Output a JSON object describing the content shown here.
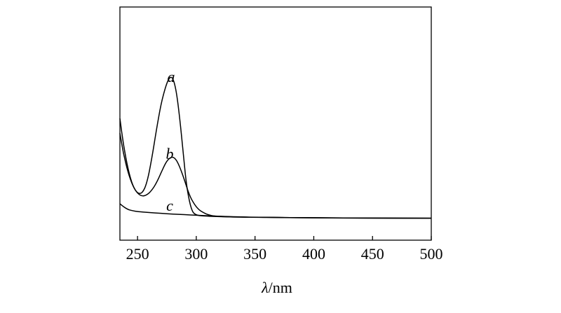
{
  "chart_data": {
    "type": "line",
    "title": "",
    "xlabel_italic": "λ",
    "xlabel_unit": "/nm",
    "ylabel": "",
    "xlim": [
      235,
      500
    ],
    "ylim": [
      0,
      1.0
    ],
    "xticks": [
      250,
      300,
      350,
      400,
      450,
      500
    ],
    "grid": false,
    "series": [
      {
        "name": "a",
        "x": [
          235,
          238,
          242,
          246,
          250,
          254,
          258,
          262,
          266,
          270,
          274,
          277,
          280,
          283,
          286,
          289,
          292,
          296,
          300,
          310,
          330,
          360,
          400,
          450,
          500
        ],
        "y": [
          0.58,
          0.44,
          0.31,
          0.22,
          0.17,
          0.17,
          0.24,
          0.4,
          0.6,
          0.78,
          0.9,
          0.96,
          0.96,
          0.87,
          0.68,
          0.43,
          0.2,
          0.05,
          0.02,
          0.015,
          0.01,
          0.007,
          0.005,
          0.003,
          0.002
        ]
      },
      {
        "name": "b",
        "x": [
          235,
          238,
          242,
          246,
          250,
          254,
          258,
          262,
          266,
          270,
          274,
          277,
          280,
          283,
          286,
          290,
          294,
          298,
          302,
          306,
          310,
          316,
          330,
          360,
          400,
          450,
          500
        ],
        "y": [
          0.68,
          0.5,
          0.33,
          0.22,
          0.17,
          0.15,
          0.16,
          0.19,
          0.24,
          0.31,
          0.38,
          0.41,
          0.42,
          0.4,
          0.35,
          0.26,
          0.16,
          0.1,
          0.06,
          0.04,
          0.025,
          0.015,
          0.01,
          0.007,
          0.005,
          0.003,
          0.002
        ]
      },
      {
        "name": "c",
        "x": [
          235,
          238,
          242,
          246,
          250,
          260,
          270,
          280,
          290,
          300,
          320,
          350,
          400,
          450,
          500
        ],
        "y": [
          0.1,
          0.08,
          0.06,
          0.052,
          0.047,
          0.04,
          0.035,
          0.03,
          0.026,
          0.022,
          0.015,
          0.008,
          0.004,
          0.002,
          0.002
        ]
      }
    ]
  }
}
